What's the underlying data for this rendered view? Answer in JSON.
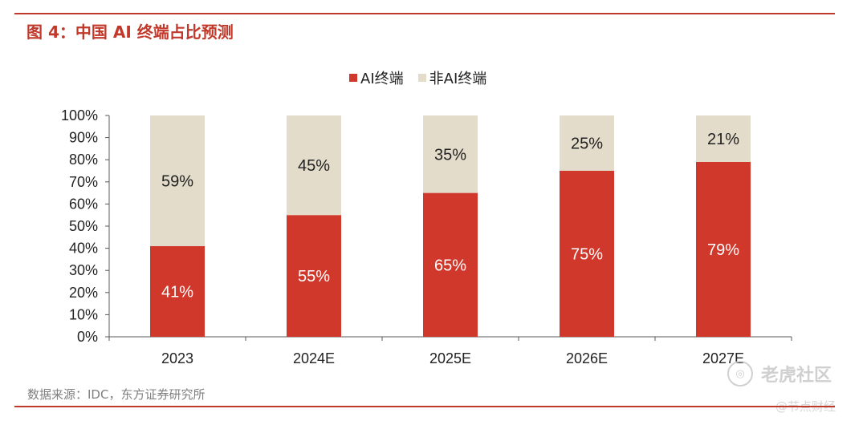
{
  "figure": {
    "title": "图 4：中国 AI 终端占比预测",
    "source": "数据来源：IDC，东方证券研究所"
  },
  "watermark": {
    "main": "老虎社区",
    "sub": "@节点财经",
    "logo_glyph": "◎"
  },
  "colors": {
    "ai": "#d0382b",
    "non_ai": "#e3dccb",
    "accent": "#c0392b",
    "axis": "#595959"
  },
  "chart_data": {
    "type": "bar",
    "stacked": true,
    "categories": [
      "2023",
      "2024E",
      "2025E",
      "2026E",
      "2027E"
    ],
    "series": [
      {
        "name": "AI终端",
        "values": [
          41,
          55,
          65,
          75,
          79
        ],
        "labels": [
          "41%",
          "55%",
          "65%",
          "75%",
          "79%"
        ]
      },
      {
        "name": "非AI终端",
        "values": [
          59,
          45,
          35,
          25,
          21
        ],
        "labels": [
          "59%",
          "45%",
          "35%",
          "25%",
          "21%"
        ]
      }
    ],
    "ylim": [
      0,
      100
    ],
    "yticks": [
      "0%",
      "10%",
      "20%",
      "30%",
      "40%",
      "50%",
      "60%",
      "70%",
      "80%",
      "90%",
      "100%"
    ],
    "legend": "top-center",
    "grid": false
  }
}
